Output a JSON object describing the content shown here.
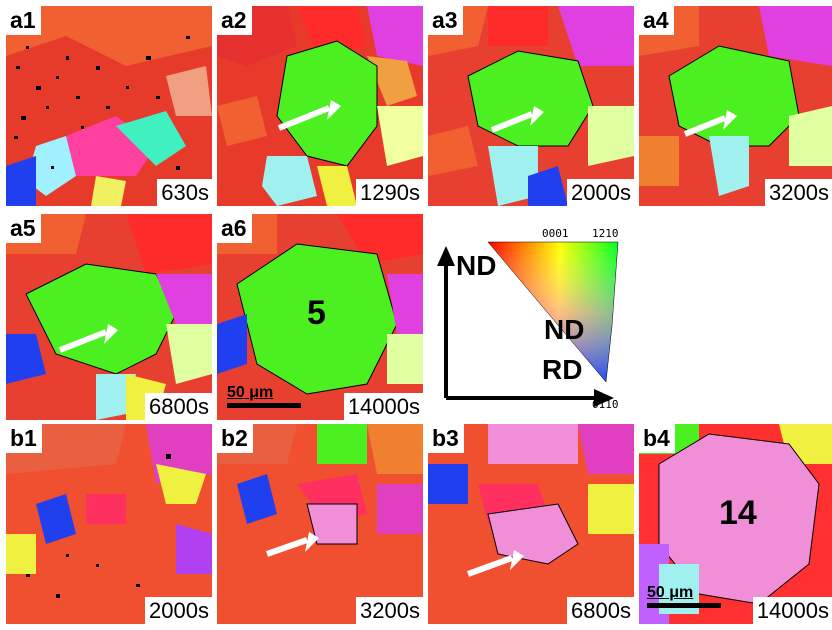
{
  "panels": [
    {
      "id": "a1",
      "label": "a1",
      "time": "630s",
      "variant": "fine"
    },
    {
      "id": "a2",
      "label": "a2",
      "time": "1290s",
      "variant": "green"
    },
    {
      "id": "a3",
      "label": "a3",
      "time": "2000s",
      "variant": "green"
    },
    {
      "id": "a4",
      "label": "a4",
      "time": "3200s",
      "variant": "green"
    },
    {
      "id": "a5",
      "label": "a5",
      "time": "6800s",
      "variant": "green"
    },
    {
      "id": "a6",
      "label": "a6",
      "time": "14000s",
      "variant": "green-big",
      "grain_number": "5",
      "scale_bar": "50 μm"
    },
    {
      "id": "b1",
      "label": "b1",
      "time": "2000s",
      "variant": "fine-red"
    },
    {
      "id": "b2",
      "label": "b2",
      "time": "3200s",
      "variant": "pink"
    },
    {
      "id": "b3",
      "label": "b3",
      "time": "6800s",
      "variant": "pink"
    },
    {
      "id": "b4",
      "label": "b4",
      "time": "14000s",
      "variant": "pink-big",
      "grain_number": "14",
      "scale_bar": "50 μm"
    }
  ],
  "legend": {
    "nd_vertical": "ND",
    "rd": "RD",
    "triangle_label": "ND",
    "corner_0001": "0001",
    "corner_1210": "1̄21̄0",
    "corner_0110": "011̄0"
  },
  "colors": {
    "green_grain": "#4cf020",
    "pink_grain": "#f08ed8",
    "matrix_red": "#e8442a",
    "arrow": "#ffffff"
  }
}
